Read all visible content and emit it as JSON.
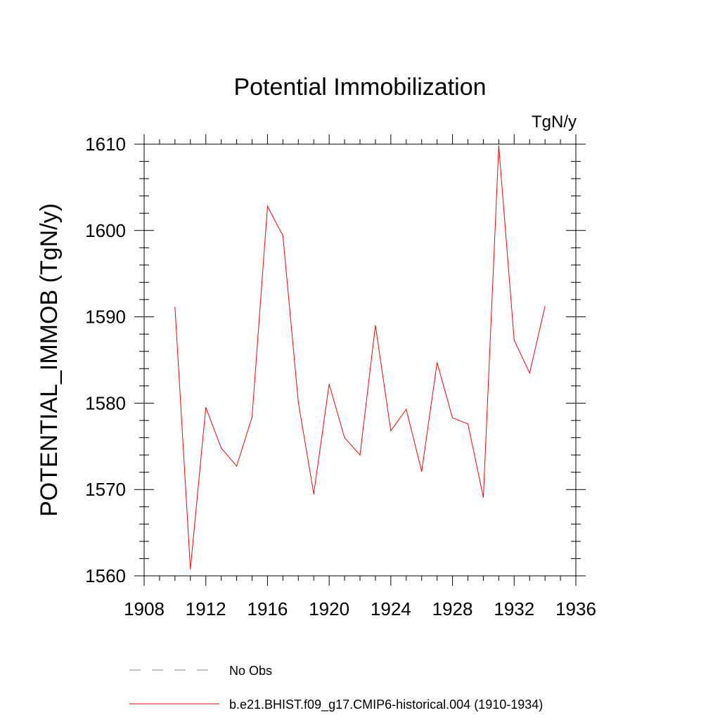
{
  "chart_data": {
    "type": "line",
    "title": "Potential Immobilization",
    "units": "TgN/y",
    "ylabel": "POTENTIAL_IMMOB  (TgN/y)",
    "xlabel": "",
    "xlim": [
      1908,
      1936
    ],
    "ylim": [
      1560,
      1610
    ],
    "xticks": [
      1908,
      1912,
      1916,
      1920,
      1924,
      1928,
      1932,
      1936
    ],
    "yticks": [
      1560,
      1570,
      1580,
      1590,
      1600,
      1610
    ],
    "grid": false,
    "legend_position": "bottom",
    "series": [
      {
        "name": "b.e21.BHIST.f09_g17.CMIP6-historical.004 (1910-1934)",
        "color": "#ff0000",
        "style": "solid",
        "x": [
          1910,
          1911,
          1912,
          1913,
          1914,
          1915,
          1916,
          1917,
          1918,
          1919,
          1920,
          1921,
          1922,
          1923,
          1924,
          1925,
          1926,
          1927,
          1928,
          1929,
          1930,
          1931,
          1932,
          1933,
          1934
        ],
        "y": [
          1591.1,
          1560.8,
          1579.5,
          1574.8,
          1572.7,
          1578.4,
          1602.8,
          1599.4,
          1580.1,
          1569.5,
          1582.2,
          1576.0,
          1574.0,
          1589.0,
          1576.8,
          1579.3,
          1572.1,
          1584.7,
          1578.3,
          1577.6,
          1569.1,
          1609.8,
          1587.3,
          1583.5,
          1591.2
        ]
      }
    ],
    "legend": [
      {
        "label": "No Obs",
        "color": "#8080c0",
        "style": "dashed"
      },
      {
        "label": "b.e21.BHIST.f09_g17.CMIP6-historical.004 (1910-1934)",
        "color": "#ff0000",
        "style": "solid"
      }
    ]
  }
}
